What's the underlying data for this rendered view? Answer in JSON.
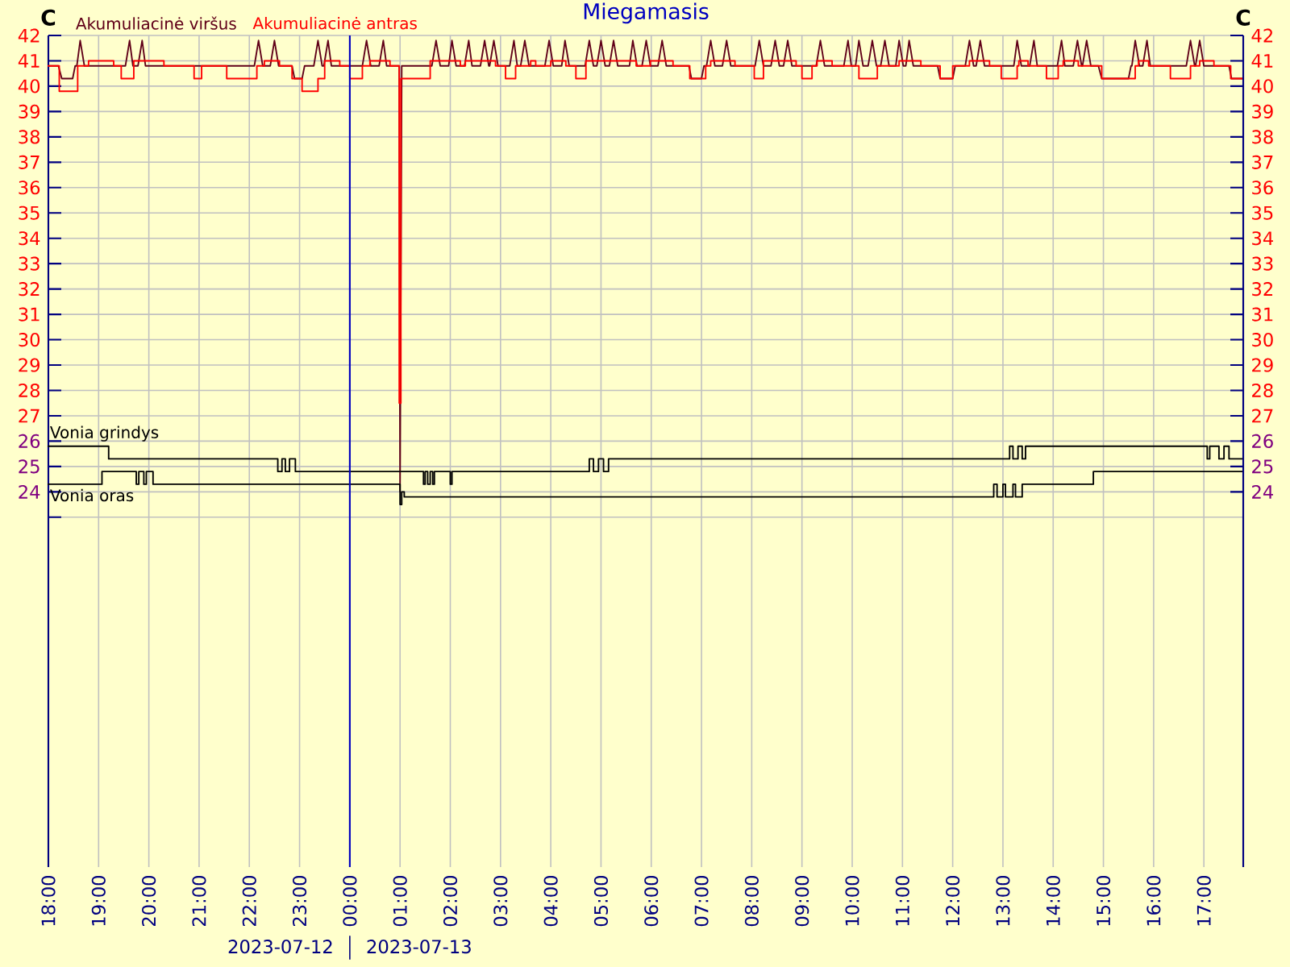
{
  "chart_data": {
    "type": "line",
    "title": "Miegamasis",
    "ylabel": "C",
    "y2label": "C",
    "xlim": [
      "2023-07-12T18:00",
      "2023-07-13T17:47"
    ],
    "ylim": [
      9.2,
      42
    ],
    "y2lim": [
      9.2,
      42
    ],
    "xticks": [
      {
        "value": "2023-07-12T18:00",
        "label": "18:00"
      },
      {
        "value": "2023-07-12T19:00",
        "label": "19:00"
      },
      {
        "value": "2023-07-12T20:00",
        "label": "20:00"
      },
      {
        "value": "2023-07-12T21:00",
        "label": "21:00"
      },
      {
        "value": "2023-07-12T22:00",
        "label": "22:00"
      },
      {
        "value": "2023-07-12T23:00",
        "label": "23:00"
      },
      {
        "value": "2023-07-13T00:00",
        "label": "00:00"
      },
      {
        "value": "2023-07-13T01:00",
        "label": "01:00"
      },
      {
        "value": "2023-07-13T02:00",
        "label": "02:00"
      },
      {
        "value": "2023-07-13T03:00",
        "label": "03:00"
      },
      {
        "value": "2023-07-13T04:00",
        "label": "04:00"
      },
      {
        "value": "2023-07-13T05:00",
        "label": "05:00"
      },
      {
        "value": "2023-07-13T06:00",
        "label": "06:00"
      },
      {
        "value": "2023-07-13T07:00",
        "label": "07:00"
      },
      {
        "value": "2023-07-13T08:00",
        "label": "08:00"
      },
      {
        "value": "2023-07-13T09:00",
        "label": "09:00"
      },
      {
        "value": "2023-07-13T10:00",
        "label": "10:00"
      },
      {
        "value": "2023-07-13T11:00",
        "label": "11:00"
      },
      {
        "value": "2023-07-13T12:00",
        "label": "12:00"
      },
      {
        "value": "2023-07-13T13:00",
        "label": "13:00"
      },
      {
        "value": "2023-07-13T14:00",
        "label": "14:00"
      },
      {
        "value": "2023-07-13T15:00",
        "label": "15:00"
      },
      {
        "value": "2023-07-13T16:00",
        "label": "16:00"
      },
      {
        "value": "2023-07-13T17:00",
        "label": "17:00"
      }
    ],
    "yticks": [
      {
        "value": 23,
        "label": null
      },
      24,
      25,
      26,
      27,
      28,
      29,
      30,
      31,
      32,
      33,
      34,
      35,
      36,
      37,
      38,
      39,
      40,
      41,
      42
    ],
    "y2ticks": [
      24,
      25,
      26,
      27,
      28,
      29,
      30,
      31,
      32,
      33,
      34,
      35,
      36,
      37,
      38,
      39,
      40,
      41,
      42
    ],
    "grid": true,
    "ref_lines": [
      {
        "axis": "x",
        "value": "2023-07-13T00:00",
        "color": "#0000c0"
      }
    ],
    "annotations": [
      "2023-07-12",
      "2023-07-13"
    ],
    "series": [
      {
        "name": "Akumuliacinė viršus",
        "color": "#600018",
        "x": [
          "2023-07-12T18:00",
          "2023-07-12T18:12",
          "2023-07-12T18:16",
          "2023-07-12T18:29",
          "2023-07-12T18:32",
          "2023-07-12T18:34",
          "2023-07-12T18:38",
          "2023-07-12T18:43",
          "2023-07-12T19:32",
          "2023-07-12T19:37",
          "2023-07-12T19:41",
          "2023-07-12T19:47",
          "2023-07-12T19:52",
          "2023-07-12T19:56",
          "2023-07-12T22:06",
          "2023-07-12T22:11",
          "2023-07-12T22:16",
          "2023-07-12T22:25",
          "2023-07-12T22:30",
          "2023-07-12T22:35",
          "2023-07-12T22:51",
          "2023-07-12T22:54",
          "2023-07-12T23:03",
          "2023-07-12T23:06",
          "2023-07-12T23:17",
          "2023-07-12T23:22",
          "2023-07-12T23:27",
          "2023-07-12T23:29",
          "2023-07-12T23:34",
          "2023-07-12T23:38",
          "2023-07-13T00:15",
          "2023-07-13T00:20",
          "2023-07-13T00:25",
          "2023-07-13T00:35",
          "2023-07-13T00:40",
          "2023-07-13T00:44",
          "2023-07-13T00:59",
          "2023-07-13T01:00",
          "2023-07-13T01:02",
          "2023-07-13T01:38",
          "2023-07-13T01:43",
          "2023-07-13T01:48",
          "2023-07-13T01:58",
          "2023-07-13T02:02",
          "2023-07-13T02:07",
          "2023-07-13T02:17",
          "2023-07-13T02:22",
          "2023-07-13T02:26",
          "2023-07-13T02:36",
          "2023-07-13T02:41",
          "2023-07-13T02:46",
          "2023-07-13T02:47",
          "2023-07-13T02:52",
          "2023-07-13T02:57",
          "2023-07-13T03:11",
          "2023-07-13T03:16",
          "2023-07-13T03:20",
          "2023-07-13T03:24",
          "2023-07-13T03:29",
          "2023-07-13T03:34",
          "2023-07-13T03:53",
          "2023-07-13T03:58",
          "2023-07-13T04:03",
          "2023-07-13T04:13",
          "2023-07-13T04:17",
          "2023-07-13T04:22",
          "2023-07-13T04:41",
          "2023-07-13T04:46",
          "2023-07-13T04:51",
          "2023-07-13T04:55",
          "2023-07-13T05:00",
          "2023-07-13T05:05",
          "2023-07-13T05:10",
          "2023-07-13T05:15",
          "2023-07-13T05:20",
          "2023-07-13T05:34",
          "2023-07-13T05:38",
          "2023-07-13T05:43",
          "2023-07-13T05:49",
          "2023-07-13T05:54",
          "2023-07-13T05:59",
          "2023-07-13T06:08",
          "2023-07-13T06:13",
          "2023-07-13T06:18",
          "2023-07-13T06:45",
          "2023-07-13T06:48",
          "2023-07-13T07:00",
          "2023-07-13T07:03",
          "2023-07-13T07:06",
          "2023-07-13T07:11",
          "2023-07-13T07:16",
          "2023-07-13T07:25",
          "2023-07-13T07:30",
          "2023-07-13T07:35",
          "2023-07-13T08:04",
          "2023-07-13T08:09",
          "2023-07-13T08:14",
          "2023-07-13T08:23",
          "2023-07-13T08:28",
          "2023-07-13T08:33",
          "2023-07-13T08:38",
          "2023-07-13T08:43",
          "2023-07-13T08:48",
          "2023-07-13T09:17",
          "2023-07-13T09:22",
          "2023-07-13T09:27",
          "2023-07-13T09:50",
          "2023-07-13T09:55",
          "2023-07-13T09:59",
          "2023-07-13T10:04",
          "2023-07-13T10:08",
          "2023-07-13T10:13",
          "2023-07-13T10:19",
          "2023-07-13T10:24",
          "2023-07-13T10:29",
          "2023-07-13T10:34",
          "2023-07-13T10:39",
          "2023-07-13T10:44",
          "2023-07-13T10:52",
          "2023-07-13T10:56",
          "2023-07-13T11:01",
          "2023-07-13T11:04",
          "2023-07-13T11:08",
          "2023-07-13T11:13",
          "2023-07-13T11:42",
          "2023-07-13T11:45",
          "2023-07-13T12:00",
          "2023-07-13T12:03",
          "2023-07-13T12:15",
          "2023-07-13T12:20",
          "2023-07-13T12:25",
          "2023-07-13T12:28",
          "2023-07-13T12:33",
          "2023-07-13T12:38",
          "2023-07-13T13:13",
          "2023-07-13T13:17",
          "2023-07-13T13:22",
          "2023-07-13T13:32",
          "2023-07-13T13:37",
          "2023-07-13T13:41",
          "2023-07-13T14:05",
          "2023-07-13T14:10",
          "2023-07-13T14:14",
          "2023-07-13T14:24",
          "2023-07-13T14:29",
          "2023-07-13T14:34",
          "2023-07-13T14:35",
          "2023-07-13T14:40",
          "2023-07-13T14:45",
          "2023-07-13T14:54",
          "2023-07-13T14:58",
          "2023-07-13T15:30",
          "2023-07-13T15:33",
          "2023-07-13T15:34",
          "2023-07-13T15:38",
          "2023-07-13T15:43",
          "2023-07-13T15:47",
          "2023-07-13T15:52",
          "2023-07-13T15:56",
          "2023-07-13T16:39",
          "2023-07-13T16:44",
          "2023-07-13T16:49",
          "2023-07-13T16:50",
          "2023-07-13T16:55",
          "2023-07-13T17:00",
          "2023-07-13T17:30",
          "2023-07-13T17:33",
          "2023-07-13T17:47"
        ],
        "values": [
          40.8,
          40.8,
          40.3,
          40.3,
          40.8,
          40.8,
          41.8,
          40.8,
          40.8,
          41.8,
          40.8,
          40.8,
          41.8,
          40.8,
          40.8,
          41.8,
          40.8,
          40.8,
          41.8,
          40.8,
          40.8,
          40.3,
          40.3,
          40.8,
          40.8,
          41.8,
          40.8,
          40.8,
          41.8,
          40.8,
          40.8,
          41.8,
          40.8,
          40.8,
          41.8,
          40.8,
          40.8,
          24.0,
          40.8,
          40.8,
          41.8,
          40.8,
          40.8,
          41.8,
          40.8,
          40.8,
          41.8,
          40.8,
          40.8,
          41.8,
          40.8,
          40.8,
          41.8,
          40.8,
          40.8,
          41.8,
          40.8,
          40.8,
          41.8,
          40.8,
          40.8,
          41.8,
          40.8,
          40.8,
          41.8,
          40.8,
          40.8,
          41.8,
          40.8,
          40.8,
          41.8,
          40.8,
          40.8,
          41.8,
          40.8,
          40.8,
          41.8,
          40.8,
          40.8,
          41.8,
          40.8,
          40.8,
          41.8,
          40.8,
          40.8,
          40.3,
          40.3,
          40.8,
          40.8,
          41.8,
          40.8,
          40.8,
          41.8,
          40.8,
          40.8,
          41.8,
          40.8,
          40.8,
          41.8,
          40.8,
          40.8,
          41.8,
          40.8,
          40.8,
          41.8,
          40.8,
          40.8,
          41.8,
          40.8,
          40.8,
          41.8,
          40.8,
          40.8,
          41.8,
          40.8,
          40.8,
          41.8,
          40.8,
          40.8,
          41.8,
          40.8,
          40.8,
          41.8,
          40.8,
          40.8,
          40.3,
          40.3,
          40.8,
          40.8,
          41.8,
          40.8,
          40.8,
          41.8,
          40.8,
          40.8,
          41.8,
          40.8,
          40.8,
          41.8,
          40.8,
          40.8,
          41.8,
          40.8,
          40.8,
          41.8,
          40.8,
          40.8,
          41.8,
          40.8,
          40.8,
          40.3,
          40.3,
          40.8,
          40.8,
          41.8,
          40.8,
          40.8,
          41.8,
          40.8,
          40.8,
          41.8,
          40.8,
          40.8,
          41.8,
          40.8,
          40.8,
          40.3,
          40.3
        ]
      },
      {
        "name": "Akumuliacinė antras",
        "color": "#ff0000",
        "type": "step",
        "x": [
          "2023-07-12T18:00",
          "2023-07-12T18:13",
          "2023-07-12T18:35",
          "2023-07-12T18:48",
          "2023-07-12T19:18",
          "2023-07-12T19:27",
          "2023-07-12T19:42",
          "2023-07-12T20:18",
          "2023-07-12T20:54",
          "2023-07-12T21:03",
          "2023-07-12T21:33",
          "2023-07-12T22:09",
          "2023-07-12T22:18",
          "2023-07-12T22:36",
          "2023-07-12T22:51",
          "2023-07-12T23:03",
          "2023-07-12T23:22",
          "2023-07-12T23:30",
          "2023-07-12T23:48",
          "2023-07-13T00:00",
          "2023-07-13T00:15",
          "2023-07-13T00:24",
          "2023-07-13T00:48",
          "2023-07-13T00:59",
          "2023-07-13T01:01",
          "2023-07-13T01:36",
          "2023-07-13T02:12",
          "2023-07-13T02:18",
          "2023-07-13T02:54",
          "2023-07-13T03:06",
          "2023-07-13T03:18",
          "2023-07-13T03:36",
          "2023-07-13T03:42",
          "2023-07-13T04:00",
          "2023-07-13T04:18",
          "2023-07-13T04:30",
          "2023-07-13T04:42",
          "2023-07-13T05:42",
          "2023-07-13T05:59",
          "2023-07-13T06:26",
          "2023-07-13T06:46",
          "2023-07-13T07:05",
          "2023-07-13T07:11",
          "2023-07-13T07:40",
          "2023-07-13T08:03",
          "2023-07-13T08:14",
          "2023-07-13T08:53",
          "2023-07-13T09:00",
          "2023-07-13T09:12",
          "2023-07-13T09:18",
          "2023-07-13T09:36",
          "2023-07-13T10:08",
          "2023-07-13T10:30",
          "2023-07-13T10:56",
          "2023-07-13T11:22",
          "2023-07-13T11:45",
          "2023-07-13T12:00",
          "2023-07-13T12:20",
          "2023-07-13T12:44",
          "2023-07-13T12:58",
          "2023-07-13T13:17",
          "2023-07-13T13:19",
          "2023-07-13T13:30",
          "2023-07-13T13:52",
          "2023-07-13T14:06",
          "2023-07-13T14:12",
          "2023-07-13T14:30",
          "2023-07-13T14:58",
          "2023-07-13T15:38",
          "2023-07-13T15:42",
          "2023-07-13T15:54",
          "2023-07-13T16:20",
          "2023-07-13T16:44",
          "2023-07-13T16:55",
          "2023-07-13T17:12",
          "2023-07-13T17:32",
          "2023-07-13T17:47"
        ],
        "values": [
          40.8,
          39.8,
          40.8,
          41.0,
          40.8,
          40.3,
          41.0,
          40.8,
          40.3,
          40.8,
          40.3,
          40.8,
          41.0,
          40.8,
          40.3,
          39.8,
          40.3,
          41.0,
          40.8,
          40.3,
          40.8,
          41.0,
          40.8,
          27.5,
          40.3,
          41.0,
          40.8,
          41.0,
          40.8,
          40.3,
          40.8,
          41.0,
          40.8,
          41.0,
          40.8,
          40.3,
          41.0,
          40.8,
          41.0,
          40.8,
          40.3,
          40.8,
          41.0,
          40.8,
          40.3,
          41.0,
          40.8,
          40.3,
          40.8,
          41.0,
          40.8,
          40.3,
          40.8,
          41.0,
          40.8,
          40.3,
          40.8,
          41.0,
          40.8,
          40.3,
          40.8,
          41.0,
          40.8,
          40.3,
          40.8,
          41.0,
          40.8,
          40.3,
          40.8,
          41.0,
          40.8,
          40.3,
          40.8,
          41.0,
          40.8,
          40.3,
          40.3
        ]
      },
      {
        "name": "Vonia grindys",
        "color": "#000000",
        "type": "step",
        "x": [
          "2023-07-12T18:00",
          "2023-07-12T19:12",
          "2023-07-12T22:34",
          "2023-07-12T22:39",
          "2023-07-12T22:43",
          "2023-07-12T22:48",
          "2023-07-12T22:55",
          "2023-07-13T01:28",
          "2023-07-13T01:30",
          "2023-07-13T01:33",
          "2023-07-13T01:36",
          "2023-07-13T01:39",
          "2023-07-13T01:41",
          "2023-07-13T02:00",
          "2023-07-13T02:02",
          "2023-07-13T04:46",
          "2023-07-13T04:51",
          "2023-07-13T04:57",
          "2023-07-13T05:03",
          "2023-07-13T05:09",
          "2023-07-13T13:08",
          "2023-07-13T13:12",
          "2023-07-13T13:18",
          "2023-07-13T13:23",
          "2023-07-13T13:27",
          "2023-07-13T17:04",
          "2023-07-13T17:07",
          "2023-07-13T17:18",
          "2023-07-13T17:24",
          "2023-07-13T17:30",
          "2023-07-13T17:47"
        ],
        "values": [
          25.8,
          25.3,
          24.8,
          25.3,
          24.8,
          25.3,
          24.8,
          24.3,
          24.8,
          24.3,
          24.8,
          24.3,
          24.8,
          24.3,
          24.8,
          25.3,
          24.8,
          25.3,
          24.8,
          25.3,
          25.8,
          25.3,
          25.8,
          25.3,
          25.8,
          25.3,
          25.8,
          25.3,
          25.8,
          25.3,
          25.3
        ]
      },
      {
        "name": "Vonia oras",
        "color": "#000000",
        "type": "step",
        "x": [
          "2023-07-12T18:00",
          "2023-07-12T19:04",
          "2023-07-12T19:45",
          "2023-07-12T19:48",
          "2023-07-12T19:54",
          "2023-07-12T19:57",
          "2023-07-12T20:05",
          "2023-07-13T01:00",
          "2023-07-13T01:02",
          "2023-07-13T01:05",
          "2023-07-13T12:49",
          "2023-07-13T12:53",
          "2023-07-13T13:00",
          "2023-07-13T13:03",
          "2023-07-13T13:12",
          "2023-07-13T13:15",
          "2023-07-13T13:23",
          "2023-07-13T14:48",
          "2023-07-13T17:47"
        ],
        "values": [
          24.3,
          24.8,
          24.3,
          24.8,
          24.3,
          24.8,
          24.3,
          23.5,
          24.0,
          23.8,
          24.3,
          23.8,
          24.3,
          23.8,
          24.3,
          23.8,
          24.3,
          24.8,
          24.8
        ]
      }
    ]
  }
}
